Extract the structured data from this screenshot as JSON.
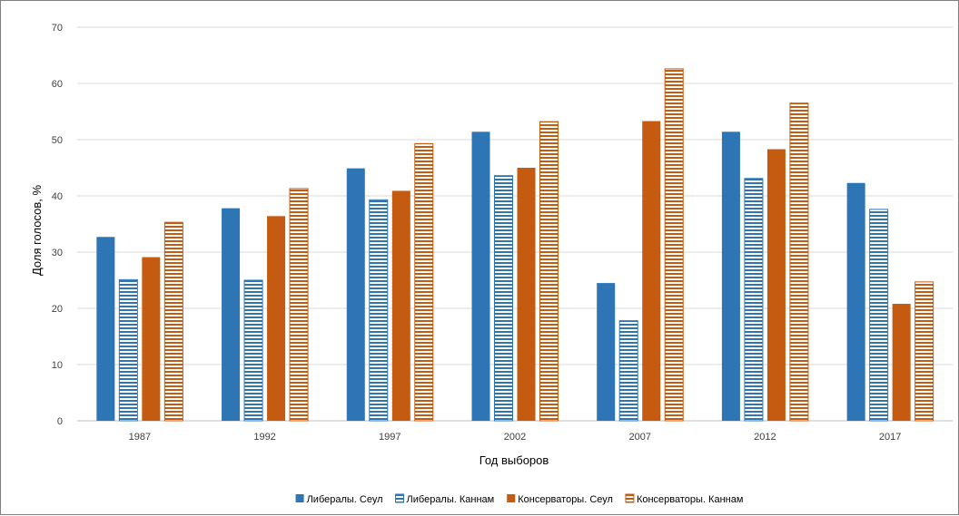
{
  "chart_data": {
    "type": "bar",
    "title": "",
    "xlabel": "Год выборов",
    "ylabel": "Доля голосов, %",
    "ylim": [
      0,
      70
    ],
    "yticks": [
      0,
      10,
      20,
      30,
      40,
      50,
      60,
      70
    ],
    "grid": true,
    "legend_position": "bottom",
    "categories": [
      "1987",
      "1992",
      "1997",
      "2002",
      "2007",
      "2012",
      "2017"
    ],
    "series": [
      {
        "name": "Либералы. Сеул",
        "color": "#2e75b6",
        "pattern": "solid",
        "values": [
          32.7,
          37.8,
          44.9,
          51.4,
          24.5,
          51.4,
          42.3
        ]
      },
      {
        "name": "Либералы. Каннам",
        "color": "#2e75b6",
        "pattern": "horizontal-stripes",
        "values": [
          25.1,
          25.0,
          39.3,
          43.6,
          17.8,
          43.1,
          37.6
        ]
      },
      {
        "name": "Консерваторы. Сеул",
        "color": "#c55a11",
        "pattern": "solid",
        "values": [
          29.1,
          36.4,
          40.9,
          45.0,
          53.3,
          48.3,
          20.8
        ]
      },
      {
        "name": "Консерваторы. Каннам",
        "color": "#c55a11",
        "pattern": "horizontal-stripes",
        "values": [
          35.3,
          41.3,
          49.3,
          53.2,
          62.6,
          56.5,
          24.7
        ]
      }
    ]
  }
}
